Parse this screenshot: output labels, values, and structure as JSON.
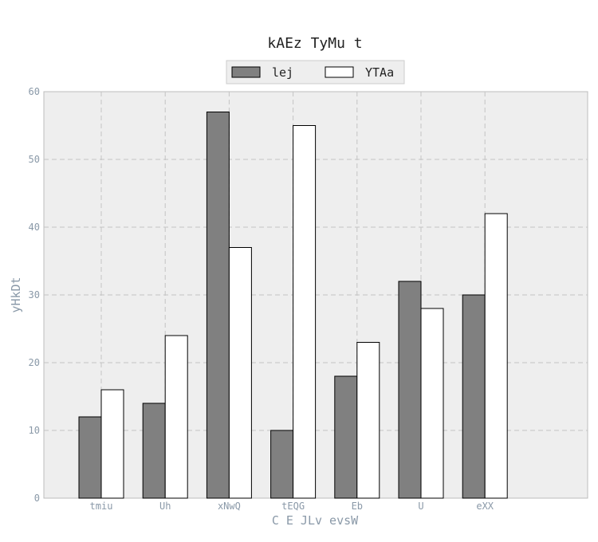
{
  "chart_data": {
    "type": "bar",
    "title": "kAEz TyMu t",
    "xlabel": "C E JLv evsW",
    "ylabel": "yHkDt",
    "categories": [
      "tmiu",
      "Uh",
      "xNwQ",
      "tEQG",
      "Eb",
      "U",
      "eXX"
    ],
    "series": [
      {
        "name": "lej",
        "values": [
          12,
          14,
          57,
          10,
          18,
          32,
          30
        ],
        "color": "#808080"
      },
      {
        "name": "YTAa",
        "values": [
          16,
          24,
          37,
          55,
          23,
          28,
          42
        ],
        "color": "#ffffff"
      }
    ],
    "ylim": [
      0,
      60
    ],
    "yticks": [
      0,
      10,
      20,
      30,
      40,
      50,
      60
    ],
    "grid": true,
    "legend_position": "top-center",
    "plot_background": "#eeeeee"
  }
}
